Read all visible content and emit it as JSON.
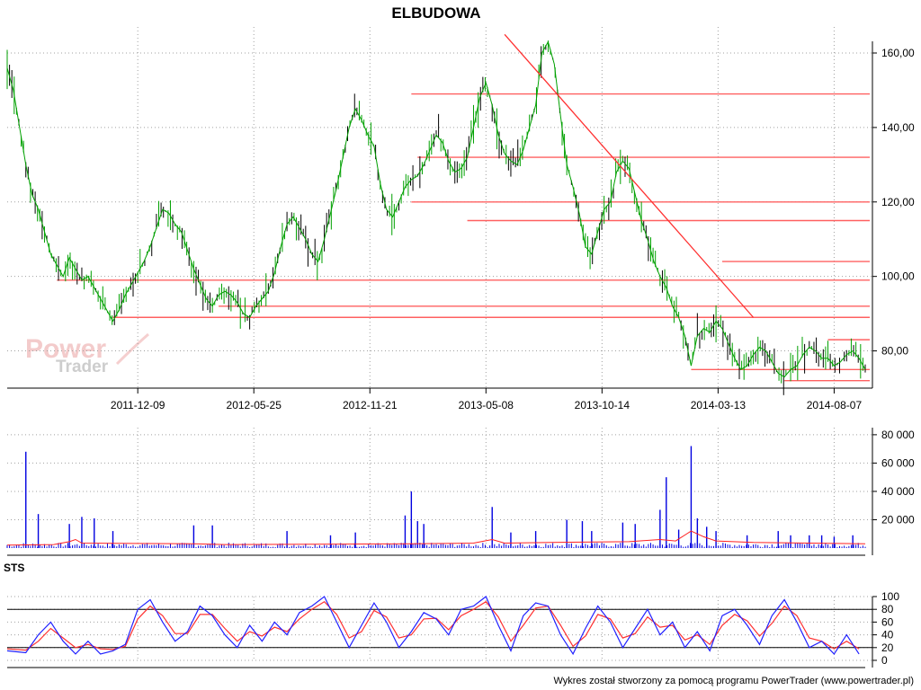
{
  "title": "ELBUDOWA",
  "footer": "Wykres został stworzony za pomocą programu PowerTrader (www.powertrader.pl)",
  "watermark": {
    "line1": "Power",
    "line2": "Trader"
  },
  "colors": {
    "price_up": "#00a000",
    "price_down": "#000000",
    "resistance": "#ff6060",
    "trendline": "#ff3030",
    "volume_bar": "#0000e0",
    "volume_ma": "#ff2020",
    "sts_fast": "#2020ff",
    "sts_slow": "#ff3030",
    "grid": "#a0a0a0"
  },
  "chart_data": [
    {
      "name": "price",
      "type": "line",
      "x_tick_labels": [
        "2011-12-09",
        "2012-05-25",
        "2012-11-21",
        "2013-05-08",
        "2013-10-14",
        "2014-03-13",
        "2014-08-07"
      ],
      "y_ticks": [
        "160,00",
        "140,00",
        "120,00",
        "100,00",
        "80,00"
      ],
      "ylim": [
        70,
        167
      ],
      "points": [
        [
          0,
          156
        ],
        [
          2,
          150
        ],
        [
          4,
          140
        ],
        [
          6,
          130
        ],
        [
          8,
          122
        ],
        [
          10,
          118
        ],
        [
          12,
          112
        ],
        [
          14,
          106
        ],
        [
          16,
          103
        ],
        [
          18,
          100
        ],
        [
          20,
          105
        ],
        [
          22,
          102
        ],
        [
          24,
          99
        ],
        [
          26,
          100
        ],
        [
          28,
          97
        ],
        [
          30,
          94
        ],
        [
          32,
          91
        ],
        [
          34,
          88
        ],
        [
          36,
          91
        ],
        [
          38,
          95
        ],
        [
          40,
          98
        ],
        [
          42,
          101
        ],
        [
          44,
          104
        ],
        [
          46,
          108
        ],
        [
          48,
          113
        ],
        [
          50,
          118
        ],
        [
          52,
          117
        ],
        [
          54,
          114
        ],
        [
          56,
          112
        ],
        [
          58,
          107
        ],
        [
          60,
          102
        ],
        [
          62,
          98
        ],
        [
          64,
          94
        ],
        [
          66,
          92
        ],
        [
          68,
          95
        ],
        [
          70,
          96
        ],
        [
          72,
          95
        ],
        [
          74,
          93
        ],
        [
          76,
          90
        ],
        [
          78,
          89
        ],
        [
          80,
          92
        ],
        [
          82,
          94
        ],
        [
          84,
          96
        ],
        [
          86,
          101
        ],
        [
          88,
          108
        ],
        [
          90,
          114
        ],
        [
          92,
          116
        ],
        [
          94,
          113
        ],
        [
          96,
          110
        ],
        [
          98,
          106
        ],
        [
          100,
          104
        ],
        [
          102,
          110
        ],
        [
          104,
          117
        ],
        [
          106,
          124
        ],
        [
          108,
          132
        ],
        [
          110,
          140
        ],
        [
          112,
          145
        ],
        [
          114,
          142
        ],
        [
          116,
          138
        ],
        [
          118,
          135
        ],
        [
          120,
          125
        ],
        [
          122,
          118
        ],
        [
          124,
          116
        ],
        [
          126,
          120
        ],
        [
          128,
          124
        ],
        [
          130,
          126
        ],
        [
          132,
          127
        ],
        [
          134,
          130
        ],
        [
          136,
          134
        ],
        [
          138,
          138
        ],
        [
          140,
          136
        ],
        [
          142,
          131
        ],
        [
          144,
          128
        ],
        [
          146,
          129
        ],
        [
          148,
          132
        ],
        [
          150,
          140
        ],
        [
          152,
          148
        ],
        [
          154,
          152
        ],
        [
          156,
          146
        ],
        [
          158,
          138
        ],
        [
          160,
          133
        ],
        [
          162,
          131
        ],
        [
          164,
          130
        ],
        [
          166,
          134
        ],
        [
          168,
          140
        ],
        [
          170,
          146
        ],
        [
          172,
          160
        ],
        [
          174,
          163
        ],
        [
          176,
          157
        ],
        [
          178,
          143
        ],
        [
          180,
          130
        ],
        [
          182,
          124
        ],
        [
          184,
          117
        ],
        [
          186,
          108
        ],
        [
          188,
          106
        ],
        [
          190,
          112
        ],
        [
          192,
          118
        ],
        [
          194,
          120
        ],
        [
          196,
          128
        ],
        [
          198,
          131
        ],
        [
          200,
          129
        ],
        [
          202,
          122
        ],
        [
          204,
          115
        ],
        [
          206,
          110
        ],
        [
          208,
          104
        ],
        [
          210,
          100
        ],
        [
          212,
          97
        ],
        [
          214,
          92
        ],
        [
          216,
          89
        ],
        [
          218,
          84
        ],
        [
          220,
          76
        ],
        [
          222,
          84
        ],
        [
          224,
          86
        ],
        [
          226,
          85
        ],
        [
          228,
          88
        ],
        [
          230,
          86
        ],
        [
          232,
          82
        ],
        [
          234,
          78
        ],
        [
          236,
          75
        ],
        [
          238,
          76
        ],
        [
          240,
          79
        ],
        [
          242,
          81
        ],
        [
          244,
          80
        ],
        [
          246,
          77
        ],
        [
          248,
          74
        ],
        [
          250,
          73
        ],
        [
          252,
          75
        ],
        [
          254,
          76
        ],
        [
          256,
          79
        ],
        [
          258,
          81
        ],
        [
          260,
          80
        ],
        [
          262,
          78
        ],
        [
          264,
          78
        ],
        [
          266,
          76
        ],
        [
          268,
          77
        ],
        [
          270,
          79
        ],
        [
          272,
          80
        ],
        [
          274,
          78
        ],
        [
          276,
          75
        ]
      ],
      "price_levels": [
        149,
        132,
        120,
        115,
        104,
        99,
        92,
        89,
        83,
        75,
        72
      ],
      "trendline": [
        [
          160,
          165
        ],
        [
          240,
          89
        ]
      ]
    },
    {
      "name": "volume",
      "type": "bar",
      "y_ticks": [
        "80 000",
        "60 000",
        "40 000",
        "20 000"
      ],
      "ylim": [
        0,
        85000
      ],
      "spikes": [
        [
          6,
          68000
        ],
        [
          10,
          24000
        ],
        [
          20,
          17000
        ],
        [
          24,
          22000
        ],
        [
          28,
          21000
        ],
        [
          34,
          12000
        ],
        [
          60,
          16000
        ],
        [
          66,
          16000
        ],
        [
          90,
          12000
        ],
        [
          104,
          9000
        ],
        [
          112,
          11000
        ],
        [
          128,
          23000
        ],
        [
          130,
          40000
        ],
        [
          132,
          19000
        ],
        [
          134,
          17000
        ],
        [
          156,
          29000
        ],
        [
          162,
          11000
        ],
        [
          170,
          12000
        ],
        [
          180,
          20000
        ],
        [
          185,
          19000
        ],
        [
          188,
          12000
        ],
        [
          198,
          18000
        ],
        [
          202,
          17000
        ],
        [
          210,
          27000
        ],
        [
          212,
          50000
        ],
        [
          216,
          13000
        ],
        [
          220,
          72000
        ],
        [
          222,
          21000
        ],
        [
          225,
          15000
        ],
        [
          228,
          12000
        ],
        [
          238,
          9000
        ],
        [
          248,
          12000
        ],
        [
          252,
          9000
        ],
        [
          258,
          9000
        ],
        [
          262,
          9000
        ],
        [
          266,
          8000
        ],
        [
          272,
          9000
        ]
      ],
      "base_volume": 2000,
      "ma": [
        [
          0,
          2000
        ],
        [
          15,
          2500
        ],
        [
          20,
          4500
        ],
        [
          22,
          6000
        ],
        [
          24,
          3500
        ],
        [
          60,
          3000
        ],
        [
          70,
          2500
        ],
        [
          130,
          3000
        ],
        [
          150,
          3500
        ],
        [
          156,
          6000
        ],
        [
          160,
          3500
        ],
        [
          175,
          4000
        ],
        [
          200,
          4500
        ],
        [
          210,
          6000
        ],
        [
          215,
          5000
        ],
        [
          220,
          12000
        ],
        [
          224,
          8000
        ],
        [
          228,
          5000
        ],
        [
          240,
          4000
        ],
        [
          276,
          3000
        ]
      ]
    },
    {
      "name": "STS",
      "type": "line",
      "label": "STS",
      "y_ticks": [
        "100",
        "80",
        "60",
        "40",
        "20",
        "0"
      ],
      "ylim": [
        0,
        100
      ],
      "reference_lines": [
        80,
        20
      ],
      "fast": [
        [
          0,
          15
        ],
        [
          6,
          12
        ],
        [
          10,
          40
        ],
        [
          14,
          60
        ],
        [
          18,
          30
        ],
        [
          22,
          10
        ],
        [
          26,
          30
        ],
        [
          30,
          10
        ],
        [
          34,
          15
        ],
        [
          38,
          25
        ],
        [
          42,
          80
        ],
        [
          46,
          95
        ],
        [
          50,
          60
        ],
        [
          54,
          30
        ],
        [
          58,
          45
        ],
        [
          62,
          85
        ],
        [
          66,
          70
        ],
        [
          70,
          40
        ],
        [
          74,
          20
        ],
        [
          78,
          55
        ],
        [
          82,
          30
        ],
        [
          86,
          60
        ],
        [
          90,
          40
        ],
        [
          94,
          75
        ],
        [
          98,
          85
        ],
        [
          102,
          100
        ],
        [
          106,
          60
        ],
        [
          110,
          20
        ],
        [
          114,
          55
        ],
        [
          118,
          90
        ],
        [
          122,
          60
        ],
        [
          126,
          20
        ],
        [
          130,
          45
        ],
        [
          134,
          75
        ],
        [
          138,
          65
        ],
        [
          142,
          40
        ],
        [
          146,
          80
        ],
        [
          150,
          85
        ],
        [
          154,
          100
        ],
        [
          158,
          55
        ],
        [
          162,
          15
        ],
        [
          166,
          70
        ],
        [
          170,
          90
        ],
        [
          174,
          85
        ],
        [
          178,
          40
        ],
        [
          182,
          10
        ],
        [
          186,
          50
        ],
        [
          190,
          85
        ],
        [
          194,
          60
        ],
        [
          198,
          20
        ],
        [
          202,
          50
        ],
        [
          206,
          80
        ],
        [
          210,
          40
        ],
        [
          214,
          60
        ],
        [
          218,
          20
        ],
        [
          222,
          45
        ],
        [
          226,
          15
        ],
        [
          230,
          70
        ],
        [
          234,
          80
        ],
        [
          238,
          55
        ],
        [
          242,
          25
        ],
        [
          246,
          70
        ],
        [
          250,
          95
        ],
        [
          254,
          60
        ],
        [
          258,
          20
        ],
        [
          262,
          30
        ],
        [
          266,
          10
        ],
        [
          270,
          40
        ],
        [
          274,
          10
        ]
      ],
      "slow": [
        [
          0,
          18
        ],
        [
          6,
          16
        ],
        [
          10,
          30
        ],
        [
          14,
          50
        ],
        [
          18,
          35
        ],
        [
          22,
          20
        ],
        [
          26,
          25
        ],
        [
          30,
          18
        ],
        [
          34,
          17
        ],
        [
          38,
          22
        ],
        [
          42,
          65
        ],
        [
          46,
          85
        ],
        [
          50,
          70
        ],
        [
          54,
          42
        ],
        [
          58,
          42
        ],
        [
          62,
          72
        ],
        [
          66,
          72
        ],
        [
          70,
          50
        ],
        [
          74,
          30
        ],
        [
          78,
          45
        ],
        [
          82,
          38
        ],
        [
          86,
          52
        ],
        [
          90,
          45
        ],
        [
          94,
          65
        ],
        [
          98,
          80
        ],
        [
          102,
          92
        ],
        [
          106,
          72
        ],
        [
          110,
          35
        ],
        [
          114,
          45
        ],
        [
          118,
          78
        ],
        [
          122,
          68
        ],
        [
          126,
          35
        ],
        [
          130,
          40
        ],
        [
          134,
          65
        ],
        [
          138,
          66
        ],
        [
          142,
          48
        ],
        [
          146,
          70
        ],
        [
          150,
          80
        ],
        [
          154,
          92
        ],
        [
          158,
          68
        ],
        [
          162,
          30
        ],
        [
          166,
          55
        ],
        [
          170,
          82
        ],
        [
          174,
          85
        ],
        [
          178,
          55
        ],
        [
          182,
          22
        ],
        [
          186,
          38
        ],
        [
          190,
          72
        ],
        [
          194,
          65
        ],
        [
          198,
          35
        ],
        [
          202,
          42
        ],
        [
          206,
          68
        ],
        [
          210,
          52
        ],
        [
          214,
          55
        ],
        [
          218,
          32
        ],
        [
          222,
          40
        ],
        [
          226,
          25
        ],
        [
          230,
          55
        ],
        [
          234,
          72
        ],
        [
          238,
          62
        ],
        [
          242,
          38
        ],
        [
          246,
          58
        ],
        [
          250,
          85
        ],
        [
          254,
          70
        ],
        [
          258,
          35
        ],
        [
          262,
          30
        ],
        [
          266,
          18
        ],
        [
          270,
          30
        ],
        [
          274,
          18
        ]
      ]
    }
  ]
}
